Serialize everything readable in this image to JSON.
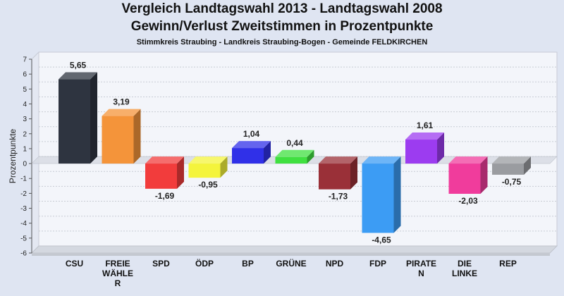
{
  "chart_data": {
    "type": "bar",
    "title": "Vergleich Landtagswahl 2013 - Landtagswahl 2008",
    "subtitle": "Gewinn/Verlust Zweitstimmen in Prozentpunkte",
    "subtitle2": "Stimmkreis Straubing - Landkreis Straubing-Bogen - Gemeinde FELDKIRCHEN",
    "ylabel": "Prozentpunkte",
    "xlabel": "",
    "ylim": [
      -6,
      7
    ],
    "yticks": [
      "-6",
      "-5",
      "-4",
      "-3",
      "-2",
      "-1",
      "0",
      "1",
      "2",
      "3",
      "4",
      "5",
      "6",
      "7"
    ],
    "grid": true,
    "categories": [
      "CSU",
      "FREIE WÄHLER",
      "SPD",
      "ÖDP",
      "BP",
      "GRÜNE",
      "NPD",
      "FDP",
      "PIRATEN",
      "DIE LINKE",
      "REP"
    ],
    "category_lines": [
      [
        "CSU"
      ],
      [
        "FREIE",
        "WÄHLE",
        "R"
      ],
      [
        "SPD"
      ],
      [
        "ÖDP"
      ],
      [
        "BP"
      ],
      [
        "GRÜNE"
      ],
      [
        "NPD"
      ],
      [
        "FDP"
      ],
      [
        "PIRATE",
        "N"
      ],
      [
        "DIE",
        "LINKE"
      ],
      [
        "REP"
      ]
    ],
    "values": [
      5.65,
      3.19,
      -1.69,
      -0.95,
      1.04,
      0.44,
      -1.73,
      -4.65,
      1.61,
      -2.03,
      -0.75
    ],
    "value_labels": [
      "5,65",
      "3,19",
      "-1,69",
      "-0,95",
      "1,04",
      "0,44",
      "-1,73",
      "-4,65",
      "1,61",
      "-2,03",
      "-0,75"
    ],
    "colors": [
      "#2e3440",
      "#f4943a",
      "#f23c3c",
      "#f4f43c",
      "#3030e8",
      "#40e040",
      "#9a3038",
      "#3c9cf4",
      "#9c3cf0",
      "#f03c9c",
      "#9a9ca0"
    ]
  }
}
